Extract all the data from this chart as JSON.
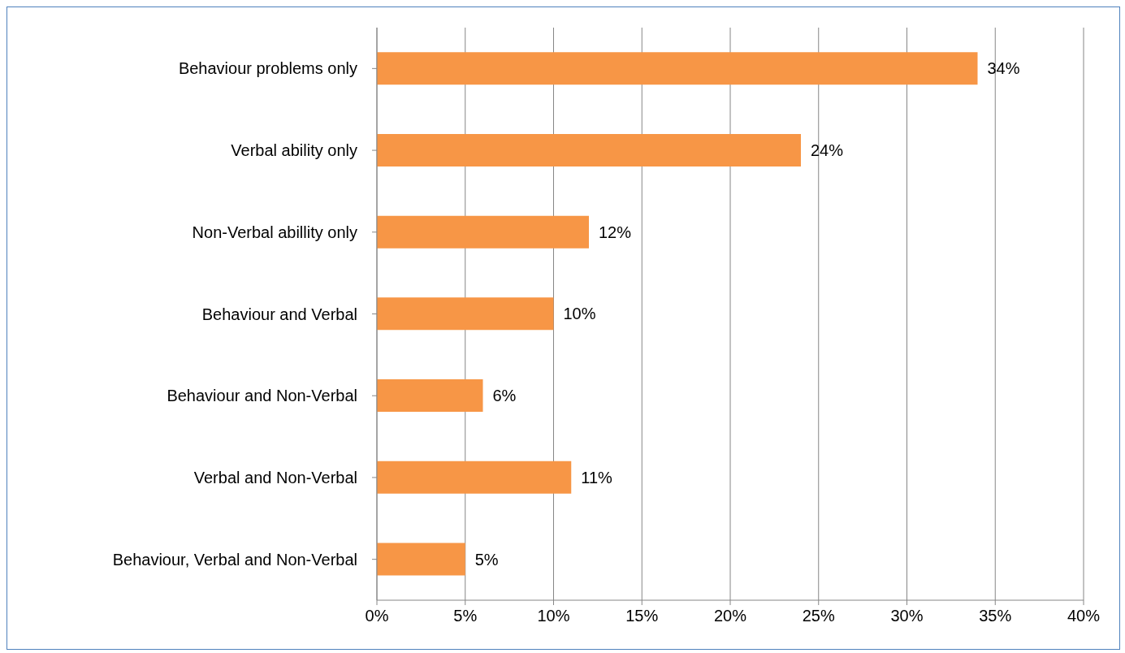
{
  "chart_data": {
    "type": "bar",
    "orientation": "horizontal",
    "categories": [
      "Behaviour problems only",
      "Verbal ability only",
      "Non-Verbal abillity only",
      "Behaviour and Verbal",
      "Behaviour and Non-Verbal",
      "Verbal and Non-Verbal",
      "Behaviour, Verbal and Non-Verbal"
    ],
    "values": [
      34,
      24,
      12,
      10,
      6,
      11,
      5
    ],
    "value_labels": [
      "34%",
      "24%",
      "12%",
      "10%",
      "6%",
      "11%",
      "5%"
    ],
    "color": "#f79646",
    "xlim": [
      0,
      40
    ],
    "xticks": [
      {
        "value": 0,
        "label": "0%"
      },
      {
        "value": 5,
        "label": "5%"
      },
      {
        "value": 10,
        "label": "10%"
      },
      {
        "value": 15,
        "label": "15%"
      },
      {
        "value": 20,
        "label": "20%"
      },
      {
        "value": 25,
        "label": "25%"
      },
      {
        "value": 30,
        "label": "30%"
      },
      {
        "value": 35,
        "label": "35%"
      },
      {
        "value": 40,
        "label": "40%"
      }
    ],
    "grid": "x"
  }
}
